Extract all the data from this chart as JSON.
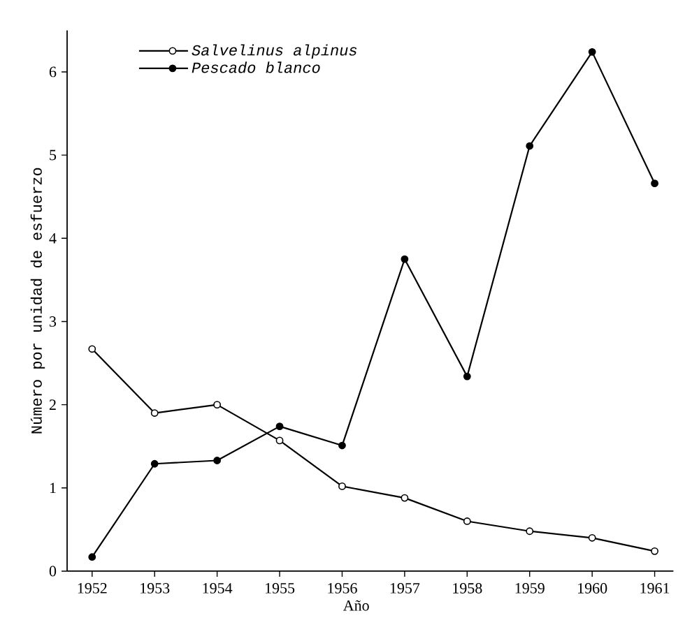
{
  "chart_data": {
    "type": "line",
    "xlabel": "Año",
    "ylabel": "Número por unidad de esfuerzo",
    "x": [
      1952,
      1953,
      1954,
      1955,
      1956,
      1957,
      1958,
      1959,
      1960,
      1961
    ],
    "series": [
      {
        "name": "Salvelinus alpinus",
        "color": "#000000",
        "values": [
          2.67,
          1.9,
          2.0,
          1.57,
          1.02,
          0.88,
          0.6,
          0.48,
          0.4,
          0.24
        ]
      },
      {
        "name": "Pescado blanco",
        "color": "#000000",
        "values": [
          0.17,
          1.29,
          1.33,
          1.74,
          1.51,
          3.75,
          2.34,
          5.11,
          6.24,
          4.66
        ]
      }
    ],
    "marker": "circle",
    "line_style": "solid",
    "legend": "top left",
    "xlim": [
      1951.6,
      1961.3
    ],
    "ylim": [
      0,
      6.5
    ],
    "xticks": [
      1952,
      1953,
      1954,
      1955,
      1956,
      1957,
      1958,
      1959,
      1960,
      1961
    ],
    "yticks": [
      0,
      1,
      2,
      3,
      4,
      5,
      6
    ]
  }
}
